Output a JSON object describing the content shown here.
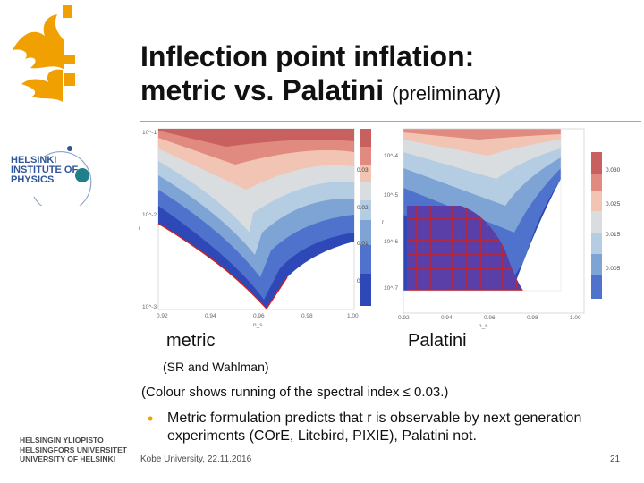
{
  "slide": {
    "title_main": "Inflection point inflation:",
    "title_line2": "metric vs. Palatini",
    "title_suffix": "(preliminary)",
    "physics_logo": [
      "HELSINKI",
      "INSTITUTE OF",
      "PHYSICS"
    ],
    "university_lines": [
      "HELSINGIN YLIOPISTO",
      "HELSINGFORS UNIVERSITET",
      "UNIVERSITY OF HELSINKI"
    ],
    "caption_metric": "metric",
    "caption_palatini": "Palatini",
    "citation": "(SR and Wahlman)",
    "colour_note": "(Colour shows running of the spectral index ≤ 0.03.)",
    "bullet_text": "Metric formulation predicts that r is observable by next generation experiments (COrE, Litebird, PIXIE), Palatini not.",
    "footer": "Kobe University, 22.11.2016",
    "page_number": "21"
  },
  "colors": {
    "logo": "#f0a000",
    "physics_blue": "#2f5597",
    "physics_teal": "#1f7f8a",
    "bands": [
      "#c96060",
      "#e08a80",
      "#f1c4b4",
      "#d9dde0",
      "#b5cde3",
      "#7ea4d6",
      "#4f73cc",
      "#2e48b8"
    ],
    "hatch": "#cc2222"
  },
  "chart_data": [
    {
      "type": "heatmap",
      "name": "metric",
      "xlabel": "n_s",
      "ylabel": "r",
      "x_ticks": [
        "0.92",
        "0.94",
        "0.96",
        "0.98",
        "1.00"
      ],
      "y_ticks": [
        "10^-1",
        "10^-2",
        "10^-3"
      ],
      "colorbar_ticks": [
        "0.03",
        "0.02",
        "0.01",
        "0"
      ]
    },
    {
      "type": "heatmap",
      "name": "palatini",
      "xlabel": "n_s",
      "ylabel": "r",
      "x_ticks": [
        "0.92",
        "0.94",
        "0.96",
        "0.98",
        "1.00"
      ],
      "y_ticks": [
        "10^-4",
        "10^-5",
        "10^-6",
        "10^-7"
      ],
      "colorbar_ticks": [
        "0.030",
        "0.025",
        "0.015",
        "0.005"
      ]
    }
  ]
}
